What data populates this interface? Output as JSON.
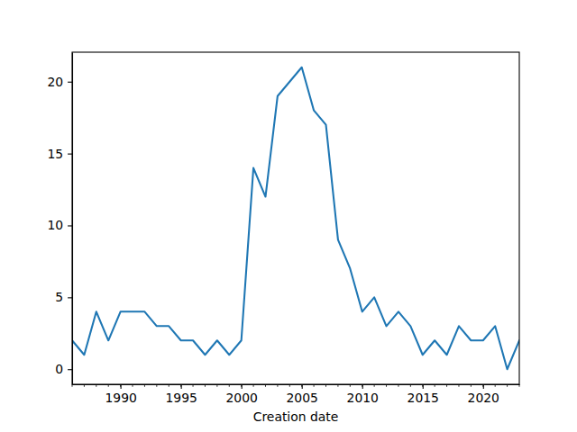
{
  "chart_data": {
    "type": "line",
    "x_label": "Creation date",
    "x": [
      1986,
      1987,
      1988,
      1989,
      1990,
      1991,
      1992,
      1993,
      1994,
      1995,
      1996,
      1997,
      1998,
      1999,
      2000,
      2001,
      2002,
      2003,
      2004,
      2005,
      2006,
      2007,
      2008,
      2009,
      2010,
      2011,
      2012,
      2013,
      2014,
      2015,
      2016,
      2017,
      2018,
      2019,
      2020,
      2021,
      2022,
      2023
    ],
    "values": [
      2,
      1,
      4,
      2,
      4,
      4,
      4,
      3,
      3,
      2,
      2,
      1,
      2,
      1,
      2,
      14,
      12,
      19,
      20,
      21,
      18,
      17,
      9,
      7,
      4,
      5,
      3,
      4,
      3,
      1,
      2,
      1,
      3,
      2,
      2,
      3,
      0,
      2
    ],
    "color": "#1f77b4",
    "xlim": [
      1986,
      2023
    ],
    "xticks": [
      1990,
      1995,
      2000,
      2005,
      2010,
      2015,
      2020
    ],
    "ylim": [
      -1.05,
      22.05
    ],
    "yticks": [
      0,
      5,
      10,
      15,
      20
    ],
    "grid": false
  }
}
